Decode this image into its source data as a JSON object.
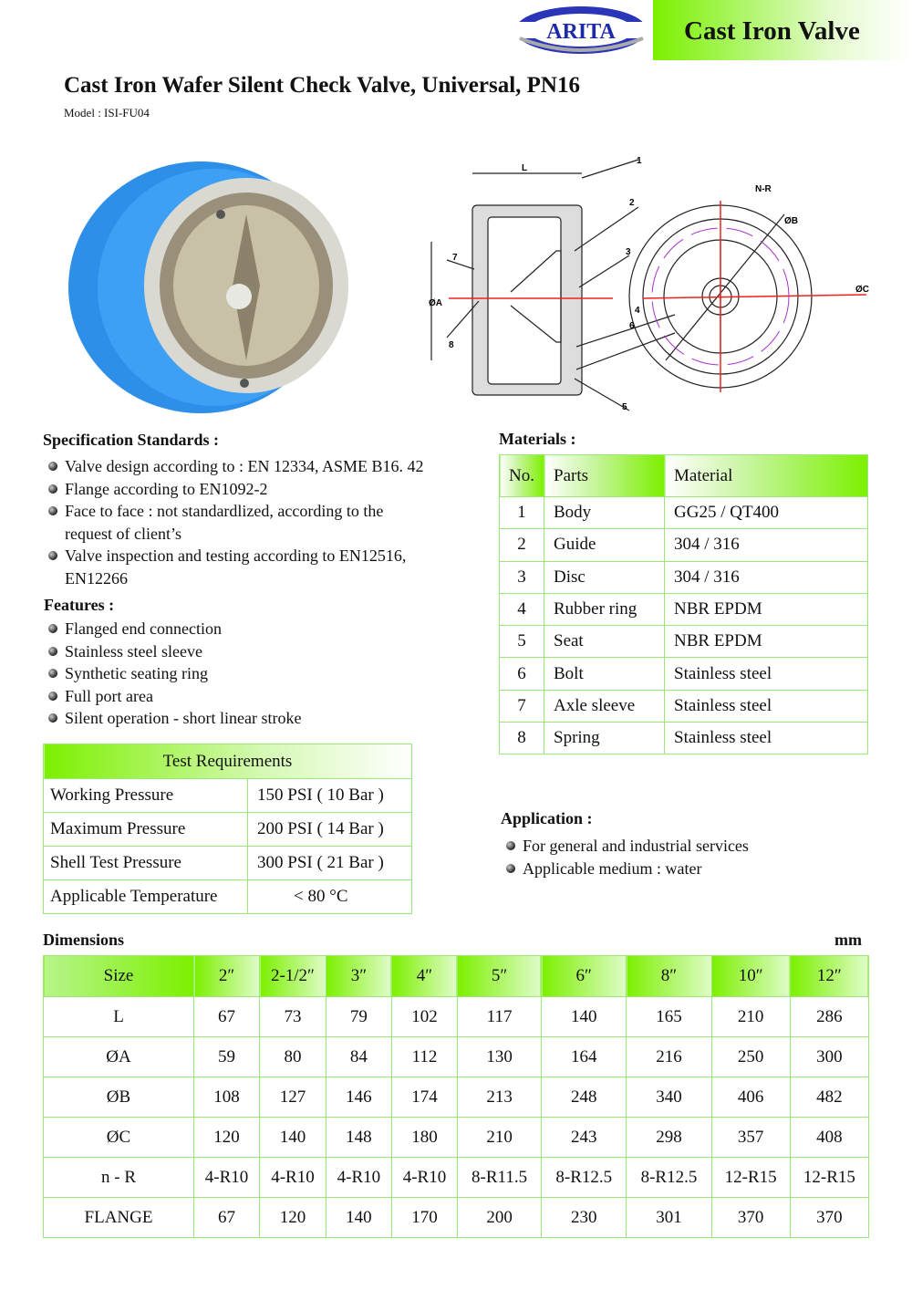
{
  "brand": {
    "logo_text": "ARITA",
    "category": "Cast Iron Valve"
  },
  "title": "Cast Iron Wafer Silent Check Valve, Universal, PN16",
  "model": "Model : ISI-FU04",
  "drawing_labels": {
    "L": "L",
    "A": "ØA",
    "B": "ØB",
    "C": "ØC",
    "NR": "N-R",
    "callouts": [
      "1",
      "2",
      "3",
      "4",
      "5",
      "6",
      "7",
      "8"
    ]
  },
  "specs": {
    "heading": "Specification Standards :",
    "items": [
      "Valve design according to : EN 12334, ASME B16. 42",
      "Flange according to EN1092-2",
      "Face to face : not standardlized, according to the request of client’s",
      "Valve inspection and testing according to EN12516, EN12266"
    ]
  },
  "features": {
    "heading": "Features :",
    "items": [
      "Flanged end connection",
      "Stainless steel sleeve",
      "Synthetic seating ring",
      "Full port area",
      "Silent operation - short linear stroke"
    ]
  },
  "test": {
    "heading": "Test  Requirements",
    "rows": [
      [
        "Working Pressure",
        "150 PSI ( 10 Bar )"
      ],
      [
        "Maximum Pressure",
        "200 PSI ( 14 Bar )"
      ],
      [
        "Shell Test Pressure",
        "300 PSI ( 21 Bar )"
      ],
      [
        "Applicable Temperature",
        "< 80 °C"
      ]
    ]
  },
  "materials": {
    "heading": "Materials :",
    "columns": [
      "No.",
      "Parts",
      "Material"
    ],
    "rows": [
      [
        "1",
        "Body",
        "GG25 / QT400"
      ],
      [
        "2",
        "Guide",
        "304 / 316"
      ],
      [
        "3",
        "Disc",
        "304 / 316"
      ],
      [
        "4",
        "Rubber ring",
        "NBR EPDM"
      ],
      [
        "5",
        "Seat",
        "NBR EPDM"
      ],
      [
        "6",
        "Bolt",
        "Stainless steel"
      ],
      [
        "7",
        "Axle sleeve",
        "Stainless steel"
      ],
      [
        "8",
        "Spring",
        "Stainless steel"
      ]
    ]
  },
  "application": {
    "heading": "Application :",
    "items": [
      "For general and industrial services",
      "Applicable medium : water"
    ]
  },
  "dimensions": {
    "heading": "Dimensions",
    "unit": "mm",
    "columns": [
      "Size",
      "2″",
      "2-1/2″",
      "3″",
      "4″",
      "5″",
      "6″",
      "8″",
      "10″",
      "12″"
    ],
    "rows": [
      [
        "L",
        "67",
        "73",
        "79",
        "102",
        "117",
        "140",
        "165",
        "210",
        "286"
      ],
      [
        "ØA",
        "59",
        "80",
        "84",
        "112",
        "130",
        "164",
        "216",
        "250",
        "300"
      ],
      [
        "ØB",
        "108",
        "127",
        "146",
        "174",
        "213",
        "248",
        "340",
        "406",
        "482"
      ],
      [
        "ØC",
        "120",
        "140",
        "148",
        "180",
        "210",
        "243",
        "298",
        "357",
        "408"
      ],
      [
        "n - R",
        "4-R10",
        "4-R10",
        "4-R10",
        "4-R10",
        "8-R11.5",
        "8-R12.5",
        "8-R12.5",
        "12-R15",
        "12-R15"
      ],
      [
        "FLANGE",
        "67",
        "120",
        "140",
        "170",
        "200",
        "230",
        "301",
        "370",
        "370"
      ]
    ]
  },
  "colors": {
    "accent_green": "#7cf000",
    "logo_blue": "#2233aa",
    "valve_blue": "#2e8fe8"
  }
}
